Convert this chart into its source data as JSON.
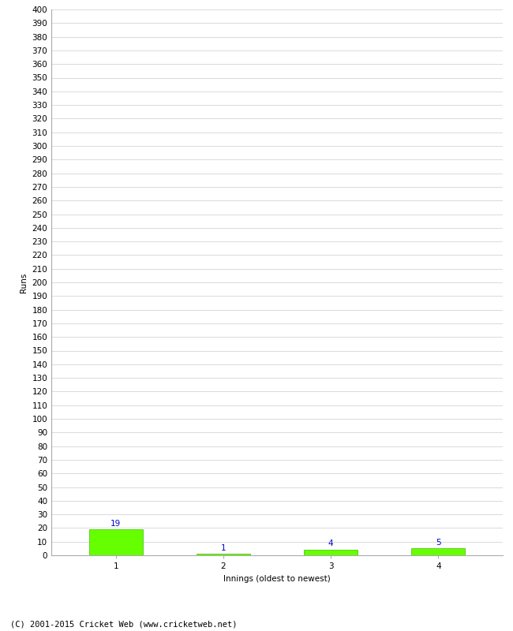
{
  "categories": [
    "1",
    "2",
    "3",
    "4"
  ],
  "values": [
    19,
    1,
    4,
    5
  ],
  "bar_color": "#66ff00",
  "bar_edge_color": "#44bb00",
  "label_color": "#0000cc",
  "xlabel": "Innings (oldest to newest)",
  "ylabel": "Runs",
  "ylim": [
    0,
    400
  ],
  "ytick_step": 10,
  "background_color": "#ffffff",
  "grid_color": "#cccccc",
  "footer_text": "(C) 2001-2015 Cricket Web (www.cricketweb.net)",
  "label_fontsize": 7.5,
  "axis_fontsize": 7.5,
  "ylabel_fontsize": 7.5,
  "footer_fontsize": 7.5
}
